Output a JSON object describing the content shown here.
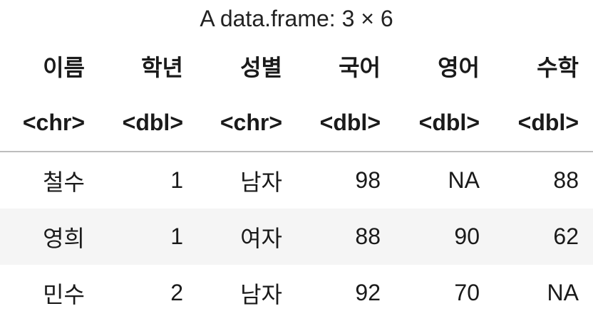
{
  "caption": "A data.frame: 3 × 6",
  "columns": [
    {
      "name": "이름",
      "type": "<chr>"
    },
    {
      "name": "학년",
      "type": "<dbl>"
    },
    {
      "name": "성별",
      "type": "<chr>"
    },
    {
      "name": "국어",
      "type": "<dbl>"
    },
    {
      "name": "영어",
      "type": "<dbl>"
    },
    {
      "name": "수학",
      "type": "<dbl>"
    }
  ],
  "rows": [
    [
      "철수",
      "1",
      "남자",
      "98",
      "NA",
      "88"
    ],
    [
      "영희",
      "1",
      "여자",
      "88",
      "90",
      "62"
    ],
    [
      "민수",
      "2",
      "남자",
      "92",
      "70",
      "NA"
    ]
  ]
}
